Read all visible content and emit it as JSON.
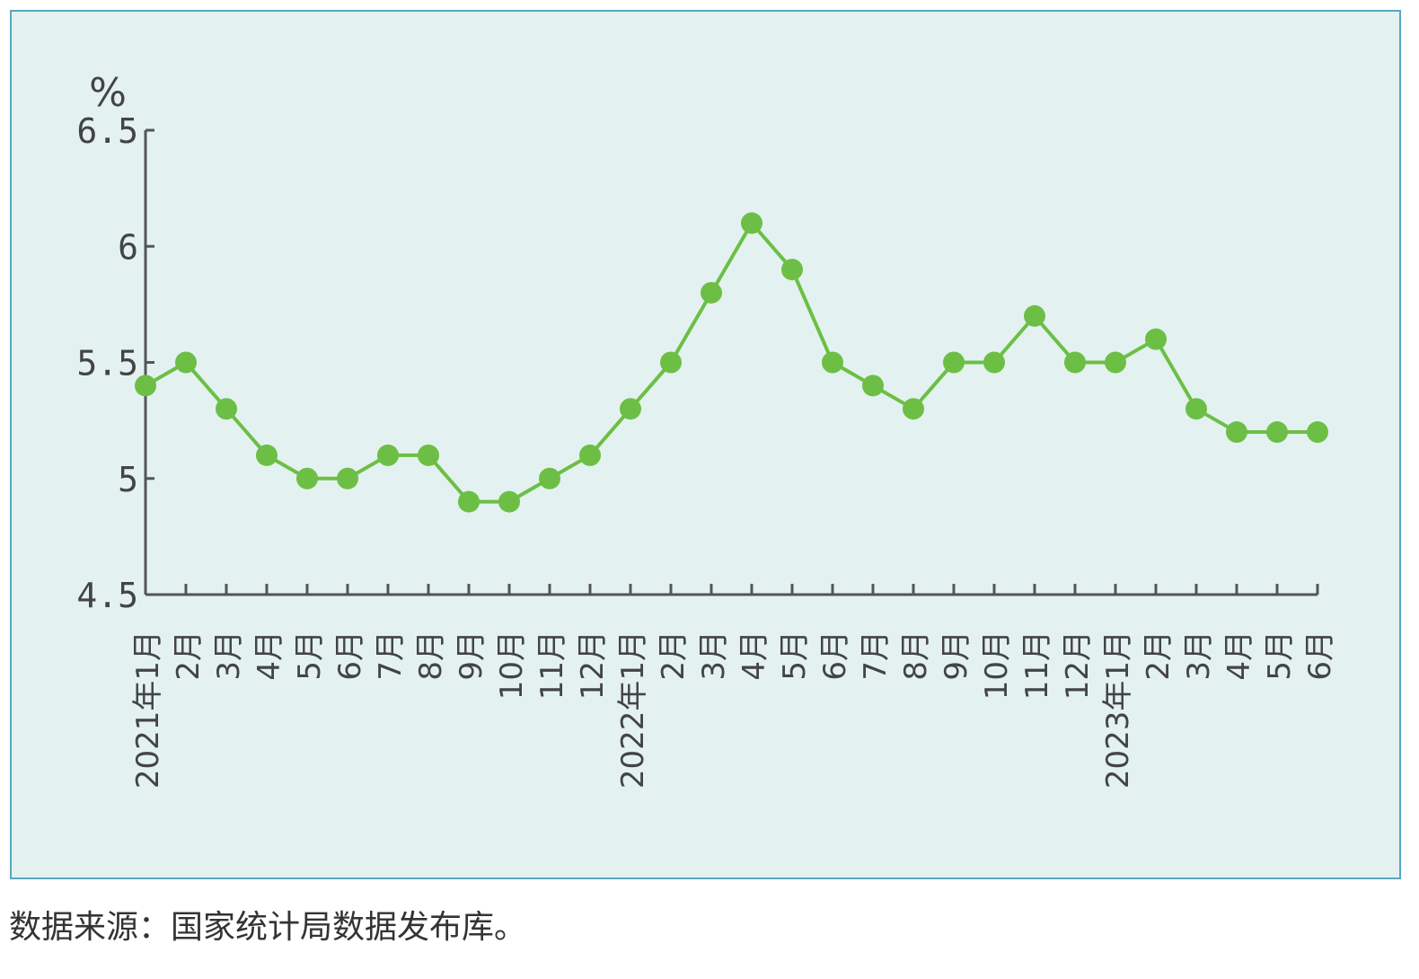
{
  "chart_data": {
    "type": "line",
    "ylabel": "%",
    "ylim": [
      4.5,
      6.5
    ],
    "yticks": [
      "6.5",
      "6",
      "5.5",
      "5",
      "4.5"
    ],
    "categories": [
      "2021年1月",
      "2月",
      "3月",
      "4月",
      "5月",
      "6月",
      "7月",
      "8月",
      "9月",
      "10月",
      "11月",
      "12月",
      "2022年1月",
      "2月",
      "3月",
      "4月",
      "5月",
      "6月",
      "7月",
      "8月",
      "9月",
      "10月",
      "11月",
      "12月",
      "2023年1月",
      "2月",
      "3月",
      "4月",
      "5月",
      "6月"
    ],
    "series": [
      {
        "values": [
          5.4,
          5.5,
          5.3,
          5.1,
          5.0,
          5.0,
          5.1,
          5.1,
          4.9,
          4.9,
          5.0,
          5.1,
          5.3,
          5.5,
          5.8,
          6.1,
          5.9,
          5.5,
          5.4,
          5.3,
          5.5,
          5.5,
          5.7,
          5.5,
          5.5,
          5.6,
          5.3,
          5.2,
          5.2,
          5.2
        ],
        "color": "#6cbf44"
      }
    ],
    "axis_color": "#555555",
    "grid": false,
    "legend": "none"
  },
  "source_note": "数据来源：国家统计局数据发布库。"
}
